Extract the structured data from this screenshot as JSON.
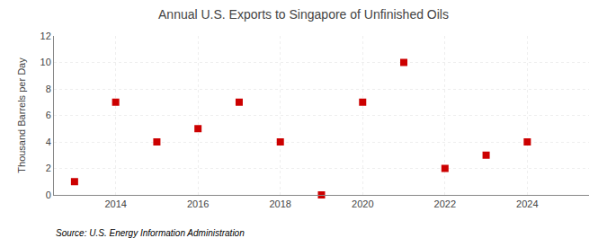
{
  "chart_data": {
    "type": "scatter",
    "title": "Annual U.S. Exports to Singapore of Unfinished Oils",
    "ylabel": "Thousand Barrels per Day",
    "source": "Source: U.S. Energy Information Administration",
    "x": [
      2013,
      2014,
      2015,
      2016,
      2017,
      2018,
      2019,
      2020,
      2021,
      2022,
      2023,
      2024
    ],
    "values": [
      1,
      7,
      4,
      5,
      7,
      4,
      0,
      7,
      10,
      2,
      3,
      4
    ],
    "color": "#cc0000",
    "marker": "square",
    "xlim": [
      2012.5,
      2025.5
    ],
    "ylim": [
      0,
      12
    ],
    "xticks": [
      2014,
      2016,
      2018,
      2020,
      2022,
      2024
    ],
    "yticks": [
      0,
      2,
      4,
      6,
      8,
      10,
      12
    ],
    "grid": true
  }
}
